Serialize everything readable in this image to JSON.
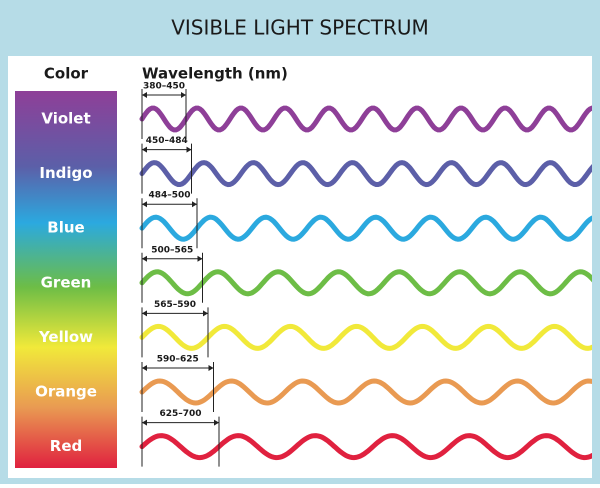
{
  "header": {
    "title": "VISIBLE LIGHT SPECTRUM"
  },
  "columns": {
    "color": "Color",
    "wavelength": "Wavelength (nm)"
  },
  "rows": [
    {
      "name": "Violet",
      "range": "380–450",
      "color": "#8e3f98"
    },
    {
      "name": "Indigo",
      "range": "450–484",
      "color": "#5c5fa8"
    },
    {
      "name": "Blue",
      "range": "484–500",
      "color": "#2ba9df"
    },
    {
      "name": "Green",
      "range": "500–565",
      "color": "#6dbd46"
    },
    {
      "name": "Yellow",
      "range": "565–590",
      "color": "#f1e93a"
    },
    {
      "name": "Orange",
      "range": "590–625",
      "color": "#e99a52"
    },
    {
      "name": "Red",
      "range": "625–700",
      "color": "#e0213f"
    }
  ]
}
